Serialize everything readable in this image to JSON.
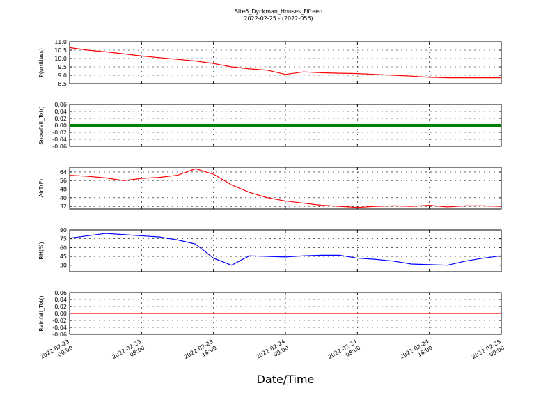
{
  "figure": {
    "title": "Site6_Dyckman_Houses_Fifteen",
    "subtitle": "2022-02-25 - (2022-056)",
    "xlabel": "Date/Time",
    "xlim": [
      "2022-02-23 00:00",
      "2022-02-25 00:00"
    ],
    "xticks": [
      "2022-02-23 00:00",
      "2022-02-23 08:00",
      "2022-02-23 16:00",
      "2022-02-24 00:00",
      "2022-02-24 08:00",
      "2022-02-24 16:00",
      "2022-02-25 00:00"
    ],
    "x": [
      "2022-02-23 00:00",
      "2022-02-23 02:00",
      "2022-02-23 04:00",
      "2022-02-23 06:00",
      "2022-02-23 08:00",
      "2022-02-23 10:00",
      "2022-02-23 12:00",
      "2022-02-23 14:00",
      "2022-02-23 16:00",
      "2022-02-23 18:00",
      "2022-02-23 20:00",
      "2022-02-23 22:00",
      "2022-02-24 00:00",
      "2022-02-24 02:00",
      "2022-02-24 04:00",
      "2022-02-24 06:00",
      "2022-02-24 08:00",
      "2022-02-24 10:00",
      "2022-02-24 12:00",
      "2022-02-24 14:00",
      "2022-02-24 16:00",
      "2022-02-24 18:00",
      "2022-02-24 20:00",
      "2022-02-24 22:00",
      "2022-02-25 00:00"
    ]
  },
  "chart_data": [
    {
      "type": "line",
      "ylabel": "P(unitless)",
      "ylim": [
        8.5,
        11
      ],
      "yticks": [
        8.5,
        {
          "value": 9,
          "label": "9.0"
        },
        9.5,
        {
          "value": 10,
          "label": "10.0"
        },
        10.5,
        {
          "value": 11,
          "label": "11.0"
        }
      ],
      "grid": true,
      "series": [
        {
          "color": "#ff0000",
          "values": [
            10.65,
            10.5,
            10.4,
            10.28,
            10.15,
            10.05,
            9.95,
            9.85,
            9.7,
            9.5,
            9.38,
            9.3,
            9.05,
            9.2,
            9.15,
            9.12,
            9.1,
            9.05,
            9.0,
            8.95,
            8.88,
            8.85,
            8.85,
            8.85,
            8.85
          ]
        }
      ]
    },
    {
      "type": "line",
      "ylabel": "Snowfall_Tot()",
      "ylim": [
        -0.06,
        0.06
      ],
      "yticks": [
        -0.06,
        -0.04,
        -0.02,
        {
          "value": 0,
          "label": "0.00"
        },
        0.02,
        0.04,
        0.06
      ],
      "grid": true,
      "markers": true,
      "series": [
        {
          "color": "#008000",
          "values": [
            0,
            0,
            0,
            0,
            0,
            0,
            0,
            0,
            0,
            0,
            0,
            0,
            0,
            0,
            0,
            0,
            0,
            0,
            0,
            0,
            0,
            0,
            0,
            0,
            0
          ]
        }
      ]
    },
    {
      "type": "line",
      "ylabel": "AirT(F)",
      "ylim": [
        29.5,
        68.5
      ],
      "yticks": [
        32,
        40,
        48,
        56,
        64
      ],
      "grid": true,
      "series": [
        {
          "color": "#ff0000",
          "values": [
            61,
            60,
            58.5,
            56,
            58,
            59,
            61,
            67,
            62,
            52,
            45,
            40,
            37,
            35,
            33,
            32,
            31,
            32,
            32.5,
            32,
            33,
            31.5,
            32.5,
            32.5,
            32
          ]
        }
      ]
    },
    {
      "type": "line",
      "ylabel": "RH(%)",
      "ylim": [
        19,
        90
      ],
      "yticks": [
        30,
        45,
        60,
        75,
        90
      ],
      "grid": true,
      "series": [
        {
          "color": "#0000ff",
          "values": [
            76,
            80,
            84,
            82,
            80,
            78,
            73,
            66,
            42,
            30,
            46,
            45,
            44,
            46,
            47,
            47,
            42,
            40,
            37,
            32,
            31,
            30,
            37,
            42,
            46
          ]
        }
      ]
    },
    {
      "type": "line",
      "ylabel": "Rainfall_Tot()",
      "ylim": [
        -0.06,
        0.06
      ],
      "yticks": [
        -0.06,
        -0.04,
        -0.02,
        {
          "value": 0,
          "label": "0.00"
        },
        0.02,
        0.04,
        0.06
      ],
      "grid": true,
      "series": [
        {
          "color": "#ff0000",
          "values": [
            0,
            0,
            0,
            0,
            0,
            0,
            0,
            0,
            0,
            0,
            0,
            0,
            0,
            0,
            0,
            0,
            0,
            0,
            0,
            0,
            0,
            0,
            0,
            0,
            0
          ]
        }
      ]
    }
  ]
}
